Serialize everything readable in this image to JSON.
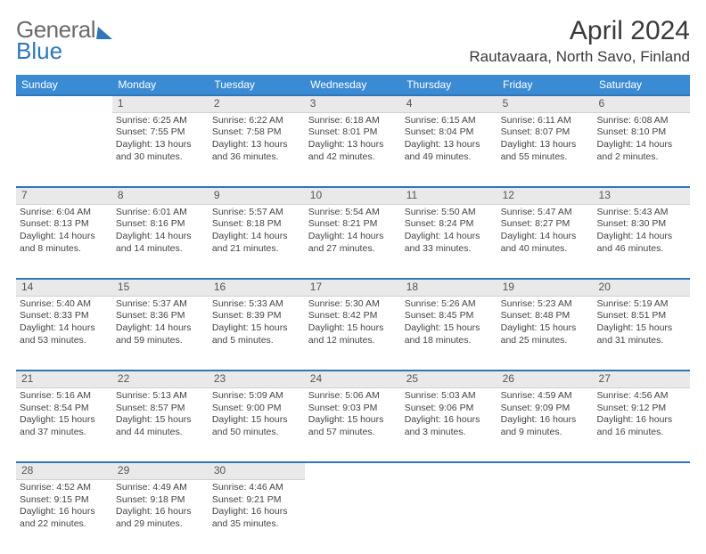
{
  "brand": {
    "part1": "General",
    "part2": "Blue"
  },
  "header": {
    "month_title": "April 2024",
    "location": "Rautavaara, North Savo, Finland"
  },
  "weekdays": [
    "Sunday",
    "Monday",
    "Tuesday",
    "Wednesday",
    "Thursday",
    "Friday",
    "Saturday"
  ],
  "colors": {
    "header_blue": "#3b8bd4",
    "accent_blue": "#2f76b9",
    "daynum_bg": "#e9e9e9",
    "text": "#444444"
  },
  "weeks": [
    {
      "nums": [
        "",
        "1",
        "2",
        "3",
        "4",
        "5",
        "6"
      ],
      "cells": [
        null,
        {
          "sr": "Sunrise: 6:25 AM",
          "ss": "Sunset: 7:55 PM",
          "dl1": "Daylight: 13 hours",
          "dl2": "and 30 minutes."
        },
        {
          "sr": "Sunrise: 6:22 AM",
          "ss": "Sunset: 7:58 PM",
          "dl1": "Daylight: 13 hours",
          "dl2": "and 36 minutes."
        },
        {
          "sr": "Sunrise: 6:18 AM",
          "ss": "Sunset: 8:01 PM",
          "dl1": "Daylight: 13 hours",
          "dl2": "and 42 minutes."
        },
        {
          "sr": "Sunrise: 6:15 AM",
          "ss": "Sunset: 8:04 PM",
          "dl1": "Daylight: 13 hours",
          "dl2": "and 49 minutes."
        },
        {
          "sr": "Sunrise: 6:11 AM",
          "ss": "Sunset: 8:07 PM",
          "dl1": "Daylight: 13 hours",
          "dl2": "and 55 minutes."
        },
        {
          "sr": "Sunrise: 6:08 AM",
          "ss": "Sunset: 8:10 PM",
          "dl1": "Daylight: 14 hours",
          "dl2": "and 2 minutes."
        }
      ]
    },
    {
      "nums": [
        "7",
        "8",
        "9",
        "10",
        "11",
        "12",
        "13"
      ],
      "cells": [
        {
          "sr": "Sunrise: 6:04 AM",
          "ss": "Sunset: 8:13 PM",
          "dl1": "Daylight: 14 hours",
          "dl2": "and 8 minutes."
        },
        {
          "sr": "Sunrise: 6:01 AM",
          "ss": "Sunset: 8:16 PM",
          "dl1": "Daylight: 14 hours",
          "dl2": "and 14 minutes."
        },
        {
          "sr": "Sunrise: 5:57 AM",
          "ss": "Sunset: 8:18 PM",
          "dl1": "Daylight: 14 hours",
          "dl2": "and 21 minutes."
        },
        {
          "sr": "Sunrise: 5:54 AM",
          "ss": "Sunset: 8:21 PM",
          "dl1": "Daylight: 14 hours",
          "dl2": "and 27 minutes."
        },
        {
          "sr": "Sunrise: 5:50 AM",
          "ss": "Sunset: 8:24 PM",
          "dl1": "Daylight: 14 hours",
          "dl2": "and 33 minutes."
        },
        {
          "sr": "Sunrise: 5:47 AM",
          "ss": "Sunset: 8:27 PM",
          "dl1": "Daylight: 14 hours",
          "dl2": "and 40 minutes."
        },
        {
          "sr": "Sunrise: 5:43 AM",
          "ss": "Sunset: 8:30 PM",
          "dl1": "Daylight: 14 hours",
          "dl2": "and 46 minutes."
        }
      ]
    },
    {
      "nums": [
        "14",
        "15",
        "16",
        "17",
        "18",
        "19",
        "20"
      ],
      "cells": [
        {
          "sr": "Sunrise: 5:40 AM",
          "ss": "Sunset: 8:33 PM",
          "dl1": "Daylight: 14 hours",
          "dl2": "and 53 minutes."
        },
        {
          "sr": "Sunrise: 5:37 AM",
          "ss": "Sunset: 8:36 PM",
          "dl1": "Daylight: 14 hours",
          "dl2": "and 59 minutes."
        },
        {
          "sr": "Sunrise: 5:33 AM",
          "ss": "Sunset: 8:39 PM",
          "dl1": "Daylight: 15 hours",
          "dl2": "and 5 minutes."
        },
        {
          "sr": "Sunrise: 5:30 AM",
          "ss": "Sunset: 8:42 PM",
          "dl1": "Daylight: 15 hours",
          "dl2": "and 12 minutes."
        },
        {
          "sr": "Sunrise: 5:26 AM",
          "ss": "Sunset: 8:45 PM",
          "dl1": "Daylight: 15 hours",
          "dl2": "and 18 minutes."
        },
        {
          "sr": "Sunrise: 5:23 AM",
          "ss": "Sunset: 8:48 PM",
          "dl1": "Daylight: 15 hours",
          "dl2": "and 25 minutes."
        },
        {
          "sr": "Sunrise: 5:19 AM",
          "ss": "Sunset: 8:51 PM",
          "dl1": "Daylight: 15 hours",
          "dl2": "and 31 minutes."
        }
      ]
    },
    {
      "nums": [
        "21",
        "22",
        "23",
        "24",
        "25",
        "26",
        "27"
      ],
      "cells": [
        {
          "sr": "Sunrise: 5:16 AM",
          "ss": "Sunset: 8:54 PM",
          "dl1": "Daylight: 15 hours",
          "dl2": "and 37 minutes."
        },
        {
          "sr": "Sunrise: 5:13 AM",
          "ss": "Sunset: 8:57 PM",
          "dl1": "Daylight: 15 hours",
          "dl2": "and 44 minutes."
        },
        {
          "sr": "Sunrise: 5:09 AM",
          "ss": "Sunset: 9:00 PM",
          "dl1": "Daylight: 15 hours",
          "dl2": "and 50 minutes."
        },
        {
          "sr": "Sunrise: 5:06 AM",
          "ss": "Sunset: 9:03 PM",
          "dl1": "Daylight: 15 hours",
          "dl2": "and 57 minutes."
        },
        {
          "sr": "Sunrise: 5:03 AM",
          "ss": "Sunset: 9:06 PM",
          "dl1": "Daylight: 16 hours",
          "dl2": "and 3 minutes."
        },
        {
          "sr": "Sunrise: 4:59 AM",
          "ss": "Sunset: 9:09 PM",
          "dl1": "Daylight: 16 hours",
          "dl2": "and 9 minutes."
        },
        {
          "sr": "Sunrise: 4:56 AM",
          "ss": "Sunset: 9:12 PM",
          "dl1": "Daylight: 16 hours",
          "dl2": "and 16 minutes."
        }
      ]
    },
    {
      "nums": [
        "28",
        "29",
        "30",
        "",
        "",
        "",
        ""
      ],
      "cells": [
        {
          "sr": "Sunrise: 4:52 AM",
          "ss": "Sunset: 9:15 PM",
          "dl1": "Daylight: 16 hours",
          "dl2": "and 22 minutes."
        },
        {
          "sr": "Sunrise: 4:49 AM",
          "ss": "Sunset: 9:18 PM",
          "dl1": "Daylight: 16 hours",
          "dl2": "and 29 minutes."
        },
        {
          "sr": "Sunrise: 4:46 AM",
          "ss": "Sunset: 9:21 PM",
          "dl1": "Daylight: 16 hours",
          "dl2": "and 35 minutes."
        },
        null,
        null,
        null,
        null
      ]
    }
  ]
}
